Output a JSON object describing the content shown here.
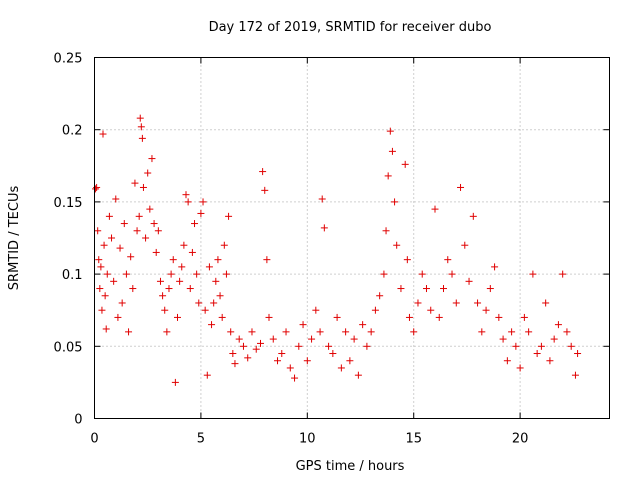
{
  "chart_data": {
    "type": "scatter",
    "title": "Day 172 of 2019, SRMTID for receiver dubo",
    "xlabel": "GPS time / hours",
    "ylabel": "SRMTID / TECUs",
    "xlim": [
      0,
      24.2
    ],
    "ylim": [
      0,
      0.25
    ],
    "x_ticks": [
      0,
      5,
      10,
      15,
      20
    ],
    "x_tick_labels": [
      "0",
      "5",
      "10",
      "15",
      "20"
    ],
    "y_ticks": [
      0,
      0.05,
      0.1,
      0.15,
      0.2,
      0.25
    ],
    "y_tick_labels": [
      "0",
      "0.05",
      "0.1",
      "0.15",
      "0.2",
      "0.25"
    ],
    "grid": true,
    "marker": "+",
    "color": "#e00000",
    "series": [
      {
        "name": "SRMTID",
        "points": [
          [
            0.05,
            0.159
          ],
          [
            0.1,
            0.16
          ],
          [
            0.15,
            0.13
          ],
          [
            0.2,
            0.11
          ],
          [
            0.25,
            0.09
          ],
          [
            0.3,
            0.105
          ],
          [
            0.35,
            0.075
          ],
          [
            0.4,
            0.197
          ],
          [
            0.45,
            0.12
          ],
          [
            0.5,
            0.085
          ],
          [
            0.55,
            0.062
          ],
          [
            0.6,
            0.1
          ],
          [
            0.7,
            0.14
          ],
          [
            0.8,
            0.125
          ],
          [
            0.9,
            0.095
          ],
          [
            1.0,
            0.152
          ],
          [
            1.1,
            0.07
          ],
          [
            1.2,
            0.118
          ],
          [
            1.3,
            0.08
          ],
          [
            1.4,
            0.135
          ],
          [
            1.5,
            0.1
          ],
          [
            1.6,
            0.06
          ],
          [
            1.7,
            0.112
          ],
          [
            1.8,
            0.09
          ],
          [
            1.9,
            0.163
          ],
          [
            2.0,
            0.13
          ],
          [
            2.1,
            0.14
          ],
          [
            2.15,
            0.208
          ],
          [
            2.2,
            0.202
          ],
          [
            2.25,
            0.194
          ],
          [
            2.3,
            0.16
          ],
          [
            2.4,
            0.125
          ],
          [
            2.5,
            0.17
          ],
          [
            2.6,
            0.145
          ],
          [
            2.7,
            0.18
          ],
          [
            2.8,
            0.135
          ],
          [
            2.9,
            0.115
          ],
          [
            3.0,
            0.13
          ],
          [
            3.1,
            0.095
          ],
          [
            3.2,
            0.085
          ],
          [
            3.3,
            0.075
          ],
          [
            3.4,
            0.06
          ],
          [
            3.5,
            0.09
          ],
          [
            3.6,
            0.1
          ],
          [
            3.7,
            0.11
          ],
          [
            3.8,
            0.025
          ],
          [
            3.9,
            0.07
          ],
          [
            4.0,
            0.095
          ],
          [
            4.1,
            0.105
          ],
          [
            4.2,
            0.12
          ],
          [
            4.3,
            0.155
          ],
          [
            4.4,
            0.15
          ],
          [
            4.5,
            0.09
          ],
          [
            4.6,
            0.115
          ],
          [
            4.7,
            0.135
          ],
          [
            4.8,
            0.1
          ],
          [
            4.9,
            0.08
          ],
          [
            5.0,
            0.142
          ],
          [
            5.1,
            0.15
          ],
          [
            5.2,
            0.075
          ],
          [
            5.3,
            0.03
          ],
          [
            5.4,
            0.105
          ],
          [
            5.5,
            0.065
          ],
          [
            5.6,
            0.08
          ],
          [
            5.7,
            0.095
          ],
          [
            5.8,
            0.11
          ],
          [
            5.9,
            0.085
          ],
          [
            6.0,
            0.07
          ],
          [
            6.1,
            0.12
          ],
          [
            6.2,
            0.1
          ],
          [
            6.3,
            0.14
          ],
          [
            6.4,
            0.06
          ],
          [
            6.5,
            0.045
          ],
          [
            6.6,
            0.038
          ],
          [
            6.8,
            0.055
          ],
          [
            7.0,
            0.05
          ],
          [
            7.2,
            0.042
          ],
          [
            7.4,
            0.06
          ],
          [
            7.6,
            0.048
          ],
          [
            7.8,
            0.052
          ],
          [
            7.9,
            0.171
          ],
          [
            8.0,
            0.158
          ],
          [
            8.1,
            0.11
          ],
          [
            8.2,
            0.07
          ],
          [
            8.4,
            0.055
          ],
          [
            8.6,
            0.04
          ],
          [
            8.8,
            0.045
          ],
          [
            9.0,
            0.06
          ],
          [
            9.2,
            0.035
          ],
          [
            9.4,
            0.028
          ],
          [
            9.6,
            0.05
          ],
          [
            9.8,
            0.065
          ],
          [
            10.0,
            0.04
          ],
          [
            10.2,
            0.055
          ],
          [
            10.4,
            0.075
          ],
          [
            10.6,
            0.06
          ],
          [
            10.7,
            0.152
          ],
          [
            10.8,
            0.132
          ],
          [
            11.0,
            0.05
          ],
          [
            11.2,
            0.045
          ],
          [
            11.4,
            0.07
          ],
          [
            11.6,
            0.035
          ],
          [
            11.8,
            0.06
          ],
          [
            12.0,
            0.04
          ],
          [
            12.2,
            0.055
          ],
          [
            12.4,
            0.03
          ],
          [
            12.6,
            0.065
          ],
          [
            12.8,
            0.05
          ],
          [
            13.0,
            0.06
          ],
          [
            13.2,
            0.075
          ],
          [
            13.4,
            0.085
          ],
          [
            13.6,
            0.1
          ],
          [
            13.7,
            0.13
          ],
          [
            13.8,
            0.168
          ],
          [
            13.9,
            0.199
          ],
          [
            14.0,
            0.185
          ],
          [
            14.1,
            0.15
          ],
          [
            14.2,
            0.12
          ],
          [
            14.4,
            0.09
          ],
          [
            14.6,
            0.176
          ],
          [
            14.7,
            0.11
          ],
          [
            14.8,
            0.07
          ],
          [
            15.0,
            0.06
          ],
          [
            15.2,
            0.08
          ],
          [
            15.4,
            0.1
          ],
          [
            15.6,
            0.09
          ],
          [
            15.8,
            0.075
          ],
          [
            16.0,
            0.145
          ],
          [
            16.2,
            0.07
          ],
          [
            16.4,
            0.09
          ],
          [
            16.6,
            0.11
          ],
          [
            16.8,
            0.1
          ],
          [
            17.0,
            0.08
          ],
          [
            17.2,
            0.16
          ],
          [
            17.4,
            0.12
          ],
          [
            17.6,
            0.095
          ],
          [
            17.8,
            0.14
          ],
          [
            18.0,
            0.08
          ],
          [
            18.2,
            0.06
          ],
          [
            18.4,
            0.075
          ],
          [
            18.6,
            0.09
          ],
          [
            18.8,
            0.105
          ],
          [
            19.0,
            0.07
          ],
          [
            19.2,
            0.055
          ],
          [
            19.4,
            0.04
          ],
          [
            19.6,
            0.06
          ],
          [
            19.8,
            0.05
          ],
          [
            20.0,
            0.035
          ],
          [
            20.2,
            0.07
          ],
          [
            20.4,
            0.06
          ],
          [
            20.6,
            0.1
          ],
          [
            20.8,
            0.045
          ],
          [
            21.0,
            0.05
          ],
          [
            21.2,
            0.08
          ],
          [
            21.4,
            0.04
          ],
          [
            21.6,
            0.055
          ],
          [
            21.8,
            0.065
          ],
          [
            22.0,
            0.1
          ],
          [
            22.2,
            0.06
          ],
          [
            22.4,
            0.05
          ],
          [
            22.6,
            0.03
          ],
          [
            22.7,
            0.045
          ]
        ]
      }
    ]
  }
}
